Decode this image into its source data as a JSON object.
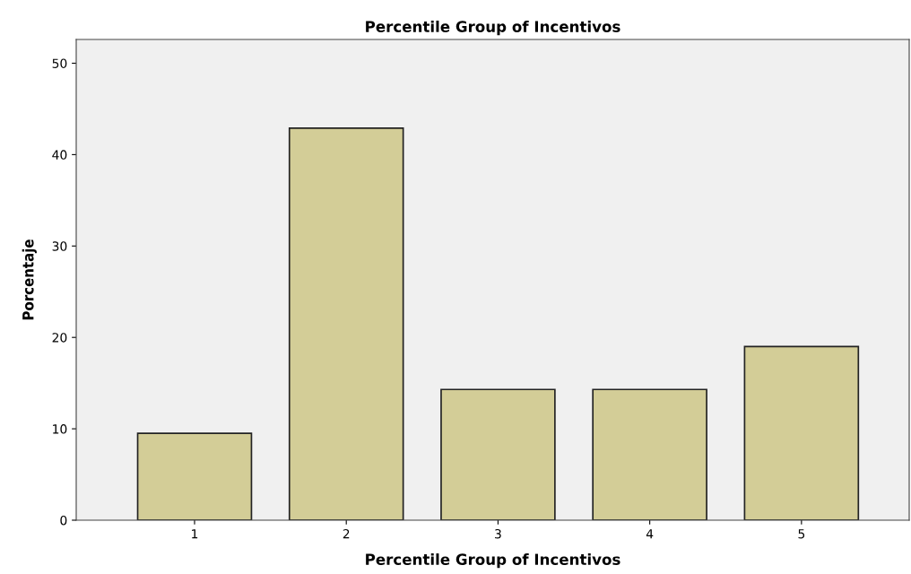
{
  "chart_data": {
    "type": "bar",
    "title": "Percentile Group of Incentivos",
    "xlabel": "Percentile Group of Incentivos",
    "ylabel": "Porcentaje",
    "categories": [
      "1",
      "2",
      "3",
      "4",
      "5"
    ],
    "values": [
      9.5,
      42.9,
      14.3,
      14.3,
      19.0
    ],
    "color": "#d3cd97",
    "ylim": [
      0,
      52.6
    ],
    "yticks": [
      0,
      10,
      20,
      30,
      40,
      50
    ],
    "grid": false
  }
}
